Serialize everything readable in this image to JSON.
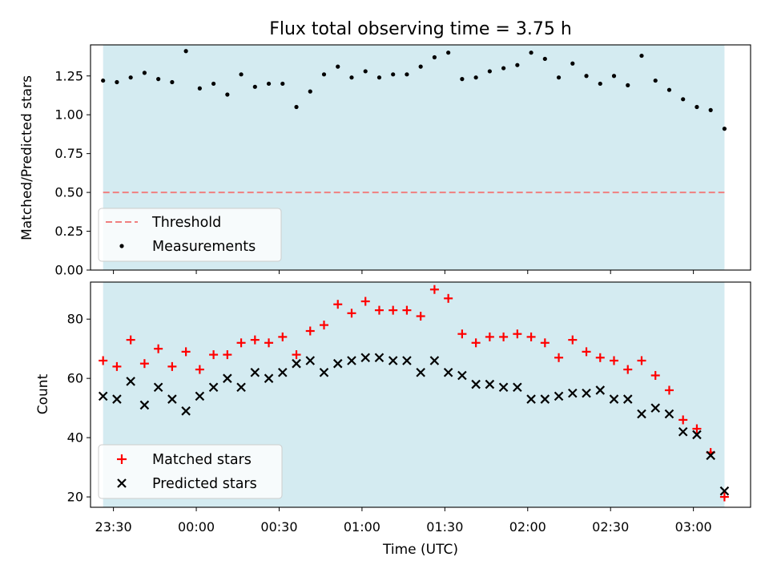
{
  "chart_data": {
    "type": "scatter",
    "title": "Flux total observing time = 3.75 h",
    "xlabel": "Time (UTC)",
    "x_tick_labels": [
      "23:30",
      "00:00",
      "00:30",
      "01:00",
      "01:30",
      "02:00",
      "02:30",
      "03:00"
    ],
    "x_tick_minutes": [
      -30,
      0,
      30,
      60,
      90,
      120,
      150,
      180
    ],
    "xlim_minutes": [
      -38.3,
      200.7
    ],
    "shaded_span_minutes": [
      -33.75,
      191.25
    ],
    "colors": {
      "shade": "#d4ebf1",
      "threshold": "#f08080",
      "measurements": "#000000",
      "matched": "#ff0000",
      "predicted": "#000000"
    },
    "x_minutes": [
      -33.75,
      -28.75,
      -23.75,
      -18.75,
      -13.75,
      -8.75,
      -3.75,
      1.25,
      6.25,
      11.25,
      16.25,
      21.25,
      26.25,
      31.25,
      36.25,
      41.25,
      46.25,
      51.25,
      56.25,
      61.25,
      66.25,
      71.25,
      76.25,
      81.25,
      86.25,
      91.25,
      96.25,
      101.25,
      106.25,
      111.25,
      116.25,
      121.25,
      126.25,
      131.25,
      136.25,
      141.25,
      146.25,
      151.25,
      156.25,
      161.25,
      166.25,
      171.25,
      176.25,
      181.25,
      186.25,
      191.25
    ],
    "panels": [
      {
        "ylabel": "Matched/Predicted stars",
        "ylim": [
          0,
          1.45
        ],
        "y_ticks": [
          0.0,
          0.25,
          0.5,
          0.75,
          1.0,
          1.25
        ],
        "y_tick_labels": [
          "0.00",
          "0.25",
          "0.50",
          "0.75",
          "1.00",
          "1.25"
        ],
        "threshold": 0.5,
        "legend_position": "lower-left",
        "series": [
          {
            "name": "Threshold",
            "kind": "dashed-line"
          },
          {
            "name": "Measurements",
            "kind": "dot",
            "values": [
              1.22,
              1.21,
              1.24,
              1.27,
              1.23,
              1.21,
              1.41,
              1.17,
              1.2,
              1.13,
              1.26,
              1.18,
              1.2,
              1.2,
              1.05,
              1.15,
              1.26,
              1.31,
              1.24,
              1.28,
              1.24,
              1.26,
              1.26,
              1.31,
              1.37,
              1.4,
              1.23,
              1.24,
              1.28,
              1.3,
              1.32,
              1.4,
              1.36,
              1.24,
              1.33,
              1.25,
              1.2,
              1.25,
              1.19,
              1.38,
              1.22,
              1.16,
              1.1,
              1.05,
              1.03,
              0.91
            ]
          }
        ]
      },
      {
        "ylabel": "Count",
        "ylim": [
          16.5,
          92.5
        ],
        "y_ticks": [
          20,
          40,
          60,
          80
        ],
        "y_tick_labels": [
          "20",
          "40",
          "60",
          "80"
        ],
        "legend_position": "lower-left",
        "series": [
          {
            "name": "Matched stars",
            "kind": "plus",
            "values": [
              66,
              64,
              73,
              65,
              70,
              64,
              69,
              63,
              68,
              68,
              72,
              73,
              72,
              74,
              68,
              76,
              78,
              85,
              82,
              86,
              83,
              83,
              83,
              81,
              90,
              87,
              75,
              72,
              74,
              74,
              75,
              74,
              72,
              67,
              73,
              69,
              67,
              66,
              63,
              66,
              61,
              56,
              46,
              43,
              35,
              20
            ]
          },
          {
            "name": "Predicted stars",
            "kind": "x",
            "values": [
              54,
              53,
              59,
              51,
              57,
              53,
              49,
              54,
              57,
              60,
              57,
              62,
              60,
              62,
              65,
              66,
              62,
              65,
              66,
              67,
              67,
              66,
              66,
              62,
              66,
              62,
              61,
              58,
              58,
              57,
              57,
              53,
              53,
              54,
              55,
              55,
              56,
              53,
              53,
              48,
              50,
              48,
              42,
              41,
              34,
              22
            ]
          }
        ]
      }
    ]
  }
}
